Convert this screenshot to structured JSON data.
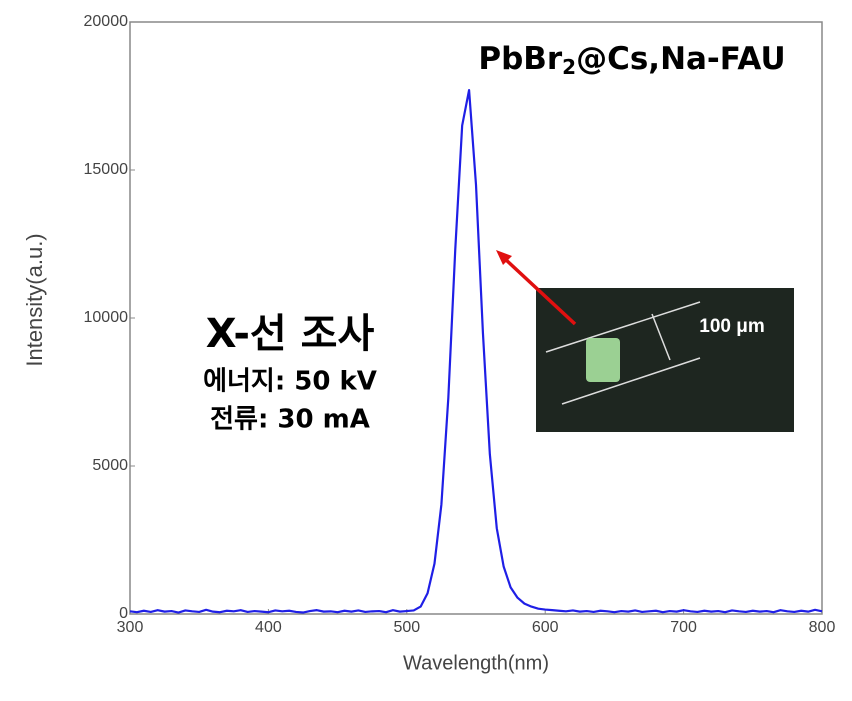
{
  "chart_data": {
    "type": "line",
    "sample_label": [
      "PbBr",
      "2",
      "@Cs,Na-FAU"
    ],
    "annotations": [
      "X-선 조사",
      "에너지: 50 kV",
      "전류: 30 mA"
    ],
    "inset_label": "100 μm",
    "x_label": "Wavelength(nm)",
    "y_label": "Intensity(a.u.)",
    "color": "#1f1fe6",
    "x": [
      300,
      305,
      310,
      315,
      320,
      325,
      330,
      335,
      340,
      345,
      350,
      355,
      360,
      365,
      370,
      375,
      380,
      385,
      390,
      395,
      400,
      405,
      410,
      415,
      420,
      425,
      430,
      435,
      440,
      445,
      450,
      455,
      460,
      465,
      470,
      475,
      480,
      485,
      490,
      495,
      500,
      505,
      510,
      515,
      520,
      525,
      530,
      535,
      540,
      545,
      550,
      555,
      560,
      565,
      570,
      575,
      580,
      585,
      590,
      595,
      600,
      605,
      610,
      615,
      620,
      625,
      630,
      635,
      640,
      645,
      650,
      655,
      660,
      665,
      670,
      675,
      680,
      685,
      690,
      695,
      700,
      705,
      710,
      715,
      720,
      725,
      730,
      735,
      740,
      745,
      750,
      755,
      760,
      765,
      770,
      775,
      780,
      785,
      790,
      795,
      800
    ],
    "values": [
      90,
      60,
      110,
      70,
      130,
      80,
      100,
      50,
      120,
      90,
      70,
      140,
      80,
      60,
      110,
      90,
      130,
      70,
      100,
      80,
      60,
      120,
      90,
      110,
      70,
      50,
      100,
      130,
      80,
      90,
      60,
      110,
      80,
      120,
      70,
      90,
      100,
      60,
      130,
      80,
      100,
      120,
      250,
      700,
      1700,
      3700,
      7300,
      12300,
      16500,
      17700,
      14500,
      9500,
      5400,
      2900,
      1600,
      900,
      550,
      350,
      250,
      180,
      150,
      130,
      110,
      90,
      120,
      80,
      100,
      70,
      110,
      90,
      60,
      100,
      80,
      120,
      70,
      90,
      110,
      60,
      100,
      80,
      130,
      90,
      70,
      110,
      80,
      100,
      60,
      120,
      90,
      70,
      110,
      80,
      100,
      60,
      130,
      90,
      70,
      110,
      80,
      140,
      90
    ],
    "xlim": [
      300,
      800
    ],
    "ylim": [
      0,
      20000
    ],
    "xticks": [
      300,
      400,
      500,
      600,
      700,
      800
    ],
    "yticks": [
      0,
      5000,
      10000,
      15000,
      20000
    ],
    "grid": false
  }
}
